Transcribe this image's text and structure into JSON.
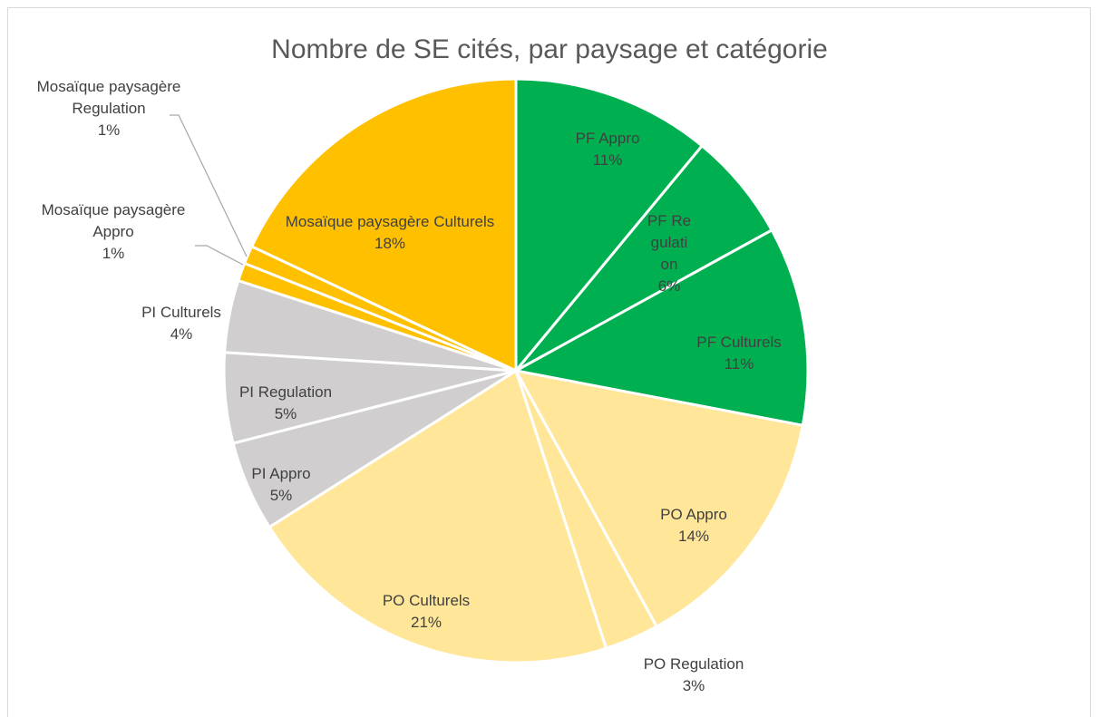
{
  "chart_data": {
    "type": "pie",
    "title": "Nombre de SE cités, par paysage et catégorie",
    "categories": [
      "PF Appro",
      "PF Regulation",
      "PF Culturels",
      "PO Appro",
      "PO Regulation",
      "PO Culturels",
      "PI Appro",
      "PI Regulation",
      "PI Culturels",
      "Mosaïque paysagère Appro",
      "Mosaïque paysagère Regulation",
      "Mosaïque paysagère Culturels"
    ],
    "values": [
      11,
      6,
      11,
      14,
      3,
      21,
      5,
      5,
      4,
      1,
      1,
      18
    ],
    "value_labels": [
      "11%",
      "6%",
      "11%",
      "14%",
      "3%",
      "21%",
      "5%",
      "5%",
      "4%",
      "1%",
      "1%",
      "18%"
    ],
    "colors": [
      "#00b050",
      "#00b050",
      "#00b050",
      "#ffe699",
      "#ffe699",
      "#ffe699",
      "#d0cece",
      "#d0cece",
      "#d0cece",
      "#ffc000",
      "#ffc000",
      "#ffc000"
    ]
  }
}
